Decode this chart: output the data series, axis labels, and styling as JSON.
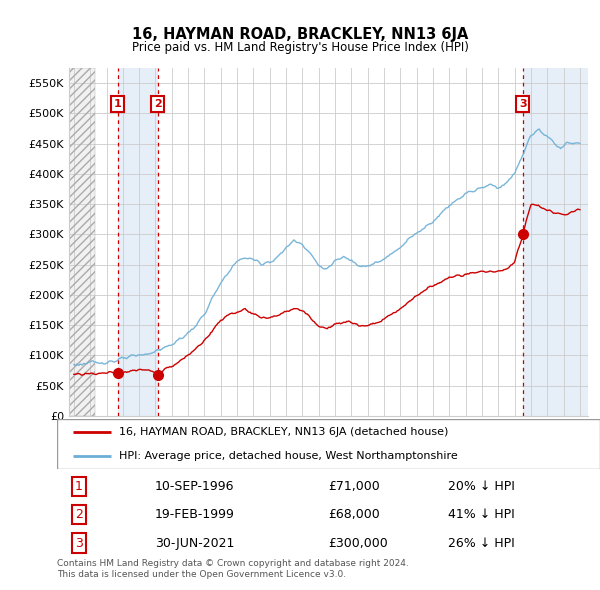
{
  "title": "16, HAYMAN ROAD, BRACKLEY, NN13 6JA",
  "subtitle": "Price paid vs. HM Land Registry's House Price Index (HPI)",
  "ylabel_ticks": [
    "£0",
    "£50K",
    "£100K",
    "£150K",
    "£200K",
    "£250K",
    "£300K",
    "£350K",
    "£400K",
    "£450K",
    "£500K",
    "£550K"
  ],
  "ytick_values": [
    0,
    50000,
    100000,
    150000,
    200000,
    250000,
    300000,
    350000,
    400000,
    450000,
    500000,
    550000
  ],
  "ylim": [
    0,
    575000
  ],
  "xlim_start": 1993.7,
  "xlim_end": 2025.5,
  "hatch_region_end": 1995.3,
  "transactions": [
    {
      "num": 1,
      "date": "10-SEP-1996",
      "year": 1996.69,
      "price": 71000,
      "label": "20% ↓ HPI"
    },
    {
      "num": 2,
      "date": "19-FEB-1999",
      "year": 1999.13,
      "price": 68000,
      "label": "41% ↓ HPI"
    },
    {
      "num": 3,
      "date": "30-JUN-2021",
      "year": 2021.5,
      "price": 300000,
      "label": "26% ↓ HPI"
    }
  ],
  "shade_regions": [
    {
      "start": 1996.69,
      "end": 1999.13
    },
    {
      "start": 2021.5,
      "end": 2025.5
    }
  ],
  "legend_entries": [
    "16, HAYMAN ROAD, BRACKLEY, NN13 6JA (detached house)",
    "HPI: Average price, detached house, West Northamptonshire"
  ],
  "table_rows": [
    {
      "num": 1,
      "date": "10-SEP-1996",
      "price": "£71,000",
      "label": "20% ↓ HPI"
    },
    {
      "num": 2,
      "date": "19-FEB-1999",
      "price": "£68,000",
      "label": "41% ↓ HPI"
    },
    {
      "num": 3,
      "date": "30-JUN-2021",
      "price": "£300,000",
      "label": "26% ↓ HPI"
    }
  ],
  "footer": "Contains HM Land Registry data © Crown copyright and database right 2024.\nThis data is licensed under the Open Government Licence v3.0.",
  "hpi_color": "#6baed6",
  "transaction_color": "#cc0000",
  "grid_color": "#cccccc",
  "plot_bg": "#ffffff",
  "shade_color": "#dce9f5"
}
